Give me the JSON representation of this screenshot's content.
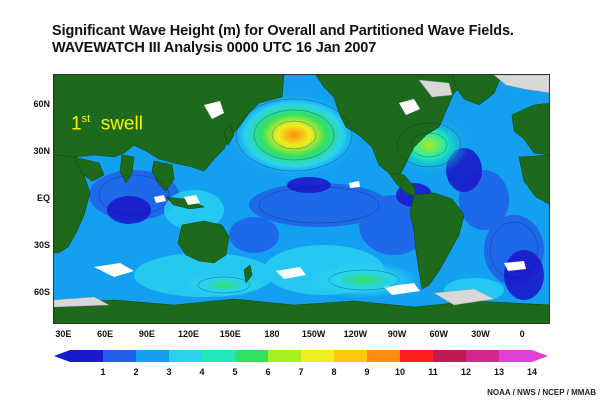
{
  "title": "Significant Wave Height (m) for Overall and Partitioned Wave Fields.",
  "subtitle": "WAVEWATCH III Analysis 0000 UTC 16 Jan 2007",
  "panel_label": {
    "ordinal": "1",
    "suffix": "st",
    "word": "swell"
  },
  "map": {
    "projection": "equirectangular",
    "lon_range": [
      22.5,
      380
    ],
    "lat_range": [
      -80,
      80
    ],
    "land_color": "#1d6a1d",
    "no_data_color": "#ffffff",
    "sea_ice_color": "#d8d8d8",
    "lat_labels": [
      {
        "lat": 60,
        "text": "60N"
      },
      {
        "lat": 30,
        "text": "30N"
      },
      {
        "lat": 0,
        "text": "EQ"
      },
      {
        "lat": -30,
        "text": "30S"
      },
      {
        "lat": -60,
        "text": "60S"
      }
    ],
    "lon_labels": [
      {
        "lon": 30,
        "text": "30E"
      },
      {
        "lon": 60,
        "text": "60E"
      },
      {
        "lon": 90,
        "text": "90E"
      },
      {
        "lon": 120,
        "text": "120E"
      },
      {
        "lon": 150,
        "text": "150E"
      },
      {
        "lon": 180,
        "text": "180"
      },
      {
        "lon": 210,
        "text": "150W"
      },
      {
        "lon": 240,
        "text": "120W"
      },
      {
        "lon": 270,
        "text": "90W"
      },
      {
        "lon": 300,
        "text": "60W"
      },
      {
        "lon": 330,
        "text": "30W"
      },
      {
        "lon": 360,
        "text": "0"
      }
    ]
  },
  "colorbar": {
    "ticks": [
      "1",
      "2",
      "3",
      "4",
      "5",
      "6",
      "7",
      "8",
      "9",
      "10",
      "11",
      "12",
      "13",
      "14"
    ],
    "colors": [
      "#1a1acc",
      "#2060e8",
      "#14a0f0",
      "#2ad2f0",
      "#20e8b8",
      "#30e060",
      "#a8ee20",
      "#eeee20",
      "#ffc810",
      "#ff8c10",
      "#ff2020",
      "#c01850",
      "#d02890",
      "#e040d8"
    ]
  },
  "credit": "NOAA / NWS / NCEP / MMAB"
}
